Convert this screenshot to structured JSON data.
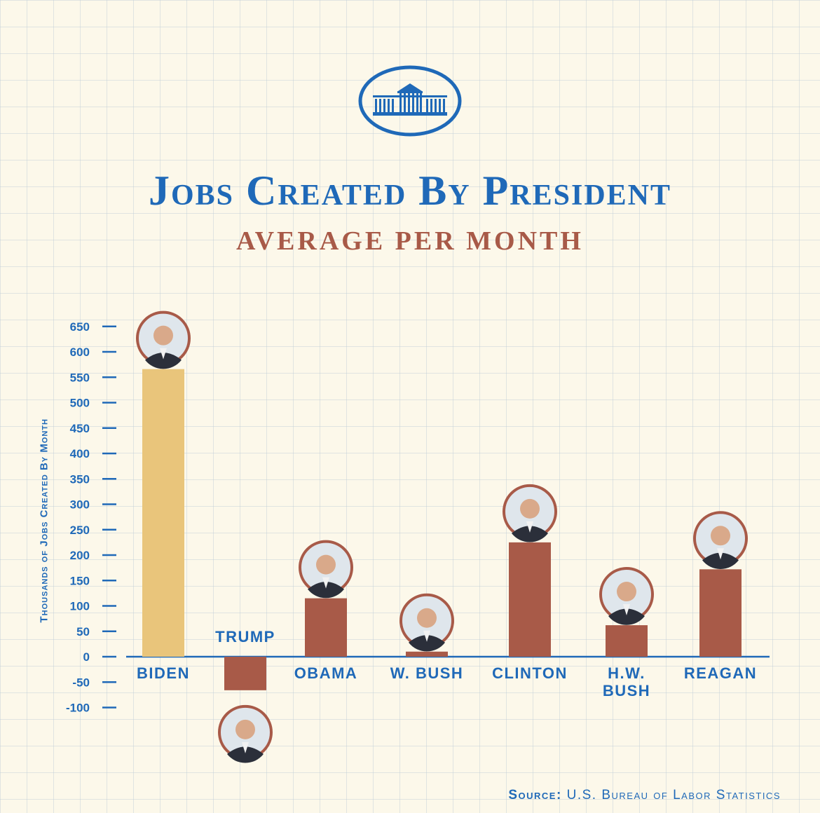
{
  "header": {
    "title": "Jobs Created By President",
    "subtitle": "AVERAGE PER MONTH",
    "logo": "white-house-logo"
  },
  "colors": {
    "blue": "#1f69b8",
    "highlight_bar": "#e9c57b",
    "bar": "#a85a48",
    "background": "#fcf8ea"
  },
  "chart_data": {
    "type": "bar",
    "title": "Jobs Created By President",
    "subtitle": "AVERAGE PER MONTH",
    "xlabel": "",
    "ylabel": "Thousands of Jobs Created By Month",
    "ylim": [
      -100,
      650
    ],
    "yticks": [
      650,
      600,
      550,
      500,
      450,
      400,
      350,
      300,
      250,
      200,
      150,
      100,
      50,
      0,
      -50,
      -100
    ],
    "ytick_labels": [
      "650",
      "600",
      "550",
      "500",
      "450",
      "400",
      "350",
      "300",
      "250",
      "200",
      "150",
      "100",
      "50",
      "0",
      "-50",
      "-100"
    ],
    "categories": [
      {
        "label": [
          "BIDEN"
        ],
        "value": 566,
        "highlight": true
      },
      {
        "label": [
          "TRUMP"
        ],
        "value": -66,
        "highlight": false
      },
      {
        "label": [
          "OBAMA"
        ],
        "value": 115,
        "highlight": false
      },
      {
        "label": [
          "W. BUSH"
        ],
        "value": 10,
        "highlight": false
      },
      {
        "label": [
          "CLINTON"
        ],
        "value": 225,
        "highlight": false
      },
      {
        "label": [
          "H.W.",
          "BUSH"
        ],
        "value": 62,
        "highlight": false
      },
      {
        "label": [
          "REAGAN"
        ],
        "value": 172,
        "highlight": false
      }
    ],
    "grid": false,
    "legend": "none"
  },
  "footer": {
    "source_label": "Source:",
    "source_text": "U.S. Bureau of Labor Statistics"
  }
}
